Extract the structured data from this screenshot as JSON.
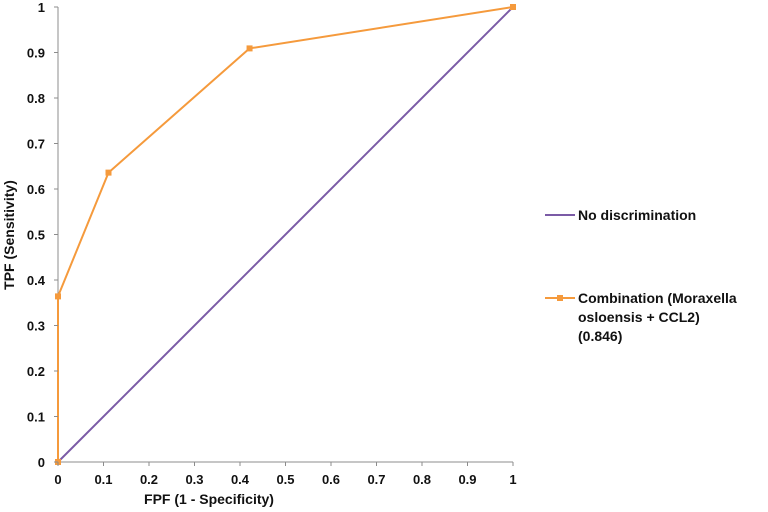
{
  "chart_data": {
    "type": "line",
    "xlabel": "FPF (1 - Specificity)",
    "ylabel": "TPF (Sensitivity)",
    "xlim": [
      0,
      1
    ],
    "ylim": [
      0,
      1
    ],
    "x_ticks": [
      "0",
      "0.1",
      "0.2",
      "0.3",
      "0.4",
      "0.5",
      "0.6",
      "0.7",
      "0.8",
      "0.9",
      "1"
    ],
    "y_ticks": [
      "0",
      "0.1",
      "0.2",
      "0.3",
      "0.4",
      "0.5",
      "0.6",
      "0.7",
      "0.8",
      "0.9",
      "1"
    ],
    "grid": false,
    "legend_position": "right",
    "series": [
      {
        "name": "No discrimination",
        "color": "#7B5BA6",
        "marker": "none",
        "x": [
          0,
          1
        ],
        "y": [
          0,
          1
        ]
      },
      {
        "name_lines": [
          "Combination (Moraxella",
          "osloensis + CCL2)",
          "(0.846)"
        ],
        "color": "#F59A3C",
        "marker": "square",
        "x": [
          0,
          0,
          0.111,
          0.421,
          1
        ],
        "y": [
          0,
          0.364,
          0.636,
          0.909,
          1
        ]
      }
    ]
  }
}
